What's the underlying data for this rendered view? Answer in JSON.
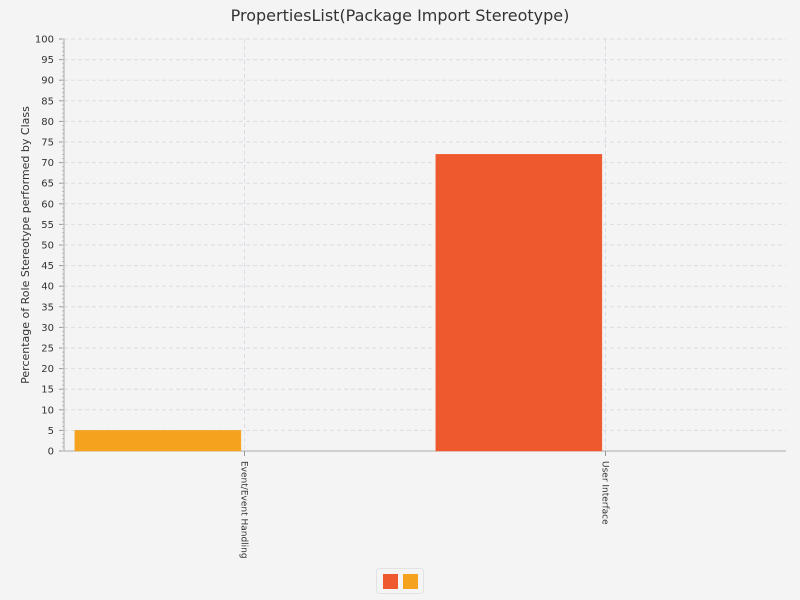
{
  "chart_data": {
    "type": "bar",
    "title": "PropertiesList(Package Import Stereotype)",
    "xlabel": "",
    "ylabel": "Percentage of Role Stereotype performed by Class",
    "ylim": [
      0,
      100
    ],
    "ytick_step": 5,
    "grid": true,
    "categories": [
      "Event/Event Handling",
      "User Interface"
    ],
    "values": [
      5,
      72
    ],
    "bar_colors": [
      "#f5a21e",
      "#ee5a2e"
    ],
    "legend": {
      "placement": "bottom-center",
      "swatch_colors": [
        "#ee5a2e",
        "#f5a21e"
      ]
    }
  }
}
